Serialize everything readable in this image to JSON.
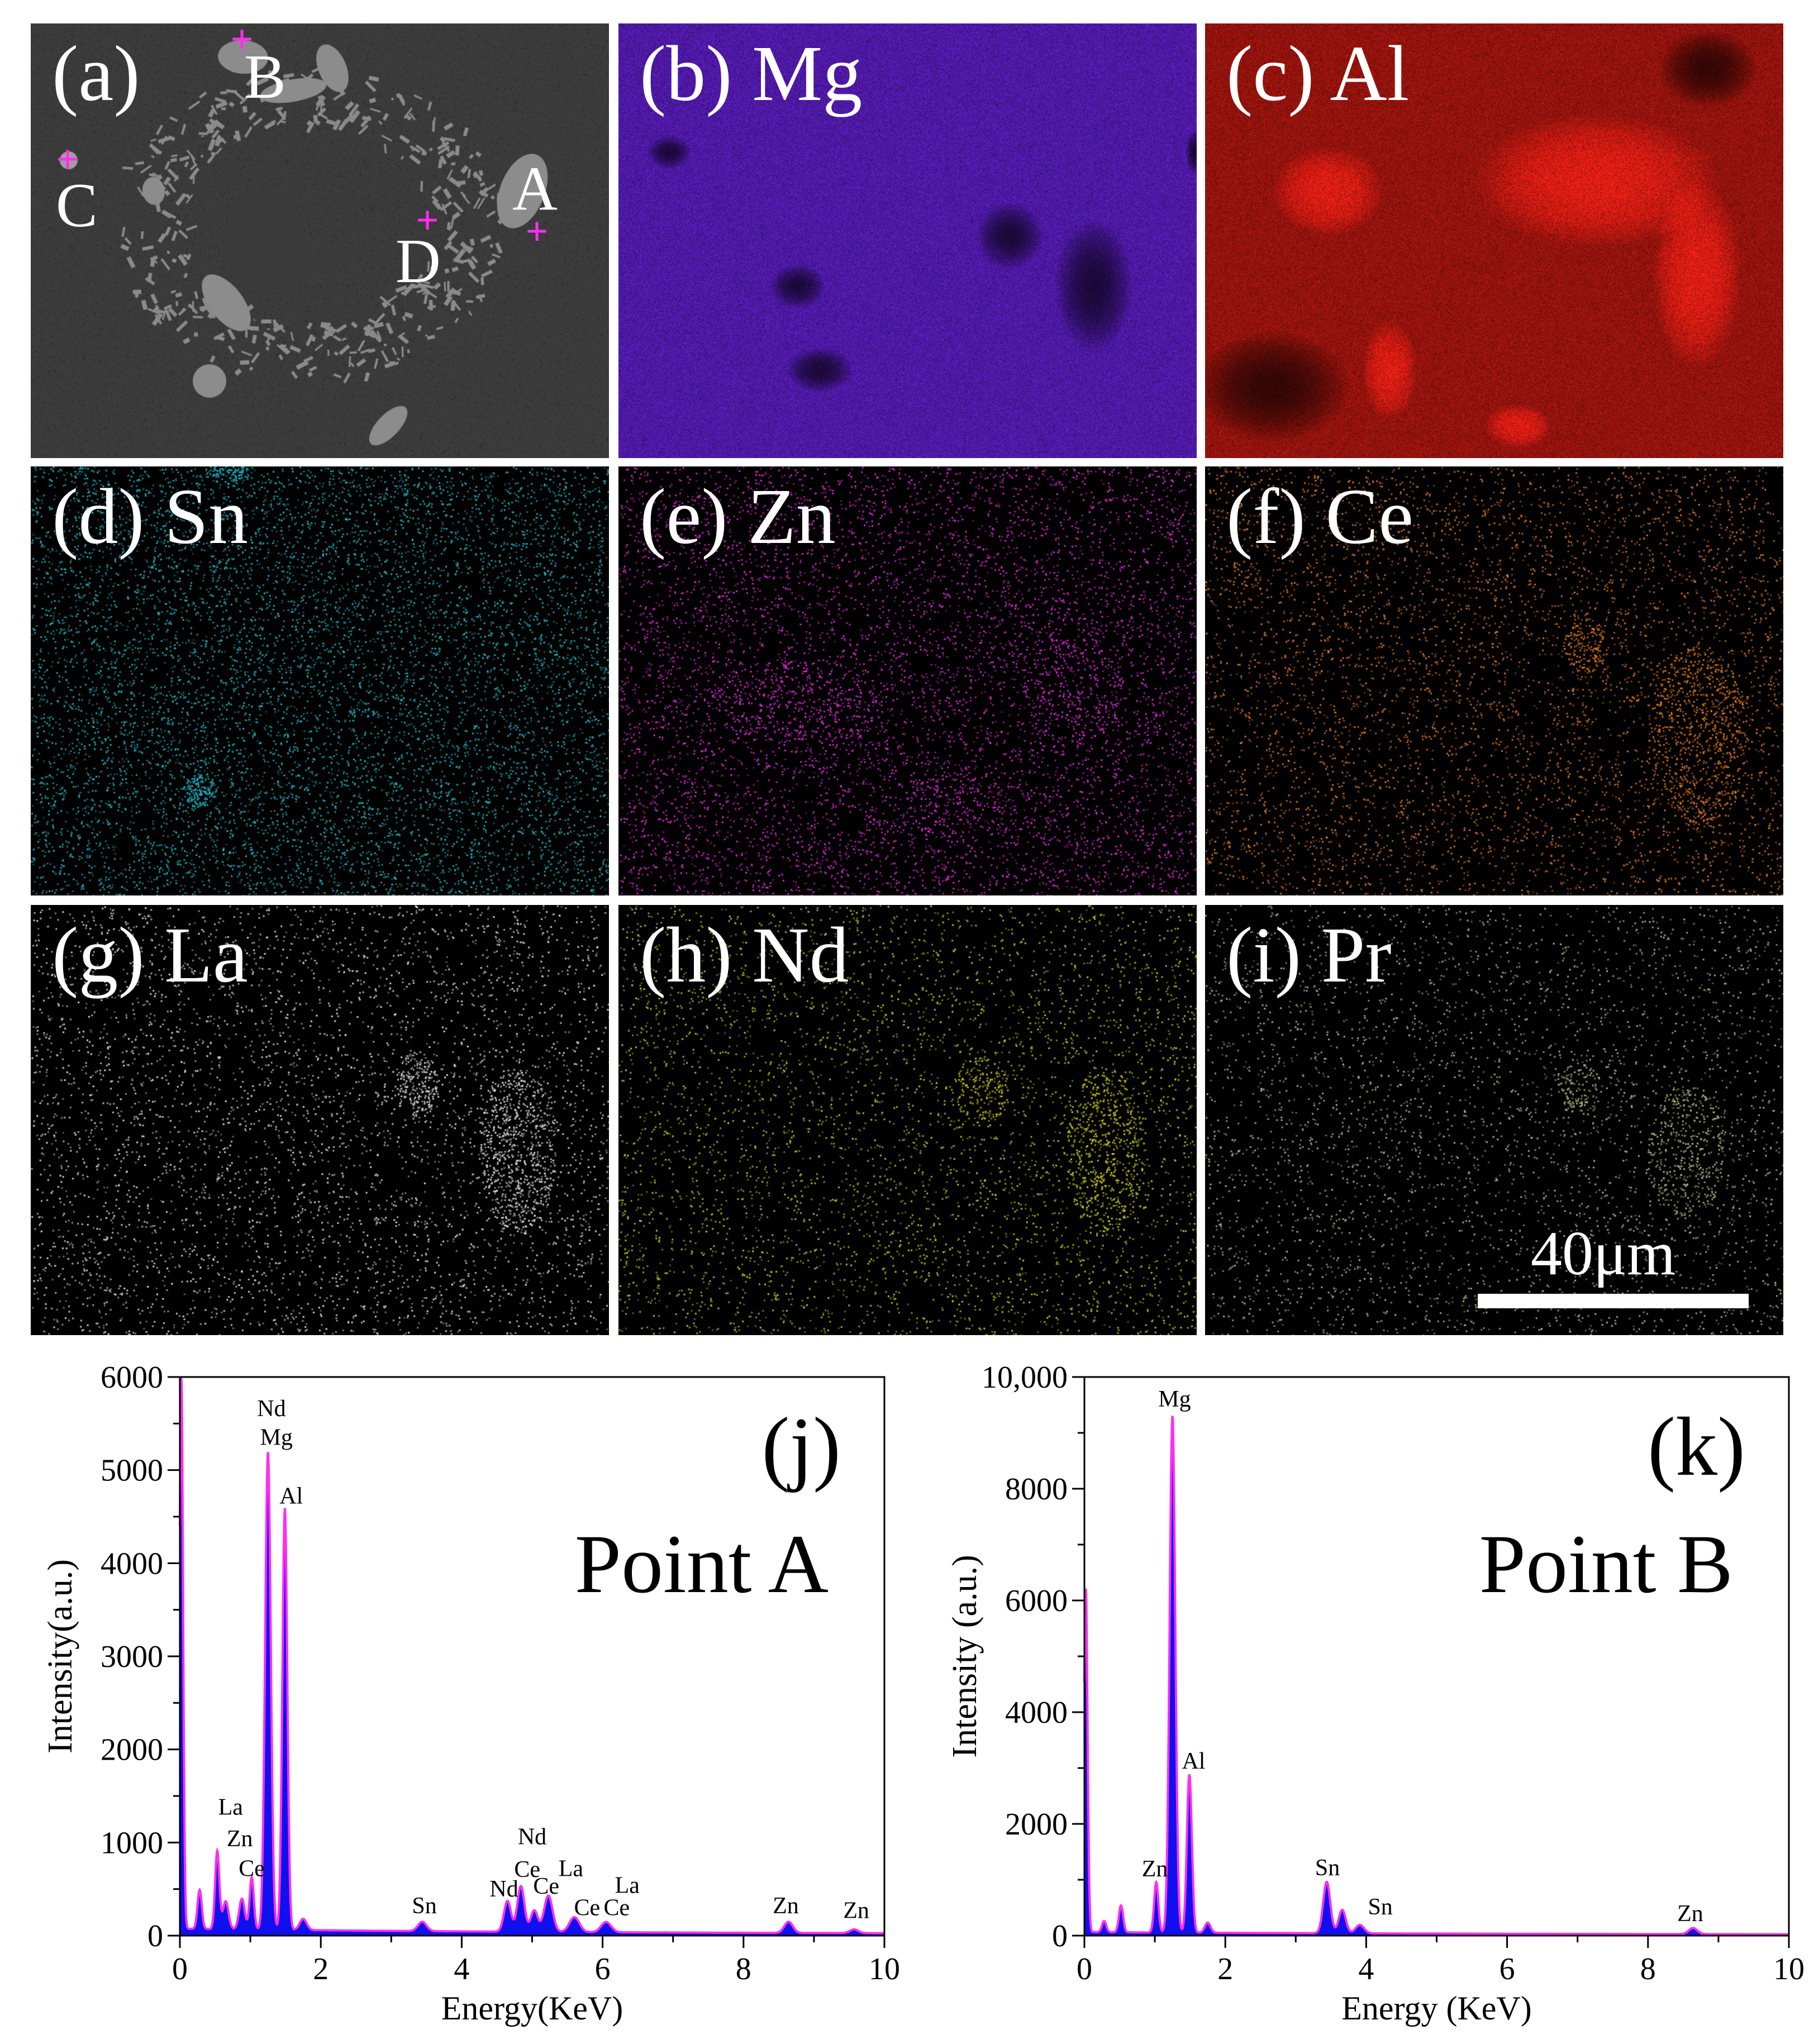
{
  "map_panels": [
    {
      "id": "a",
      "label": "(a)",
      "element": ""
    },
    {
      "id": "b",
      "label": "(b)",
      "element": "Mg",
      "color": "#6a22e0"
    },
    {
      "id": "c",
      "label": "(c)",
      "element": "Al",
      "color": "#c81a12"
    },
    {
      "id": "d",
      "label": "(d)",
      "element": "Sn",
      "color": "#1fb2c2"
    },
    {
      "id": "e",
      "label": "(e)",
      "element": "Zn",
      "color": "#e02ad8"
    },
    {
      "id": "f",
      "label": "(f)",
      "element": "Ce",
      "color": "#e07a1a"
    },
    {
      "id": "g",
      "label": "(g)",
      "element": "La",
      "color": "#dcdcdc"
    },
    {
      "id": "h",
      "label": "(h)",
      "element": "Nd",
      "color": "#c8c81e"
    },
    {
      "id": "i",
      "label": "(i)",
      "element": "Pr",
      "color": "#b8b880"
    }
  ],
  "sem_points": [
    "A",
    "B",
    "C",
    "D"
  ],
  "marker_color": "#ff2ef0",
  "scale_bar": {
    "label": "40μm"
  },
  "chart_data": [
    {
      "type": "area",
      "panel_label": "(j)",
      "title": "Point A",
      "xlabel": "Energy(KeV)",
      "ylabel": "Intensity(a.u.)",
      "xlim": [
        0,
        10
      ],
      "ylim": [
        0,
        6000
      ],
      "xticks": [
        "0",
        "2",
        "4",
        "6",
        "8",
        "10"
      ],
      "yticks": [
        "0",
        "1000",
        "2000",
        "3000",
        "4000",
        "5000",
        "6000"
      ],
      "line_color": "#ff2ef0",
      "fill_color": "#1010ee",
      "baseline": 60,
      "peaks": [
        {
          "x": 0.02,
          "y": 5960,
          "w": 0.025
        },
        {
          "x": 0.28,
          "y": 420,
          "w": 0.03
        },
        {
          "x": 0.53,
          "y": 840,
          "w": 0.03
        },
        {
          "x": 0.65,
          "y": 300,
          "w": 0.04
        },
        {
          "x": 0.88,
          "y": 330,
          "w": 0.04
        },
        {
          "x": 1.02,
          "y": 560,
          "w": 0.03
        },
        {
          "x": 1.25,
          "y": 5130,
          "w": 0.04
        },
        {
          "x": 1.49,
          "y": 4530,
          "w": 0.035
        },
        {
          "x": 1.75,
          "y": 120,
          "w": 0.05
        },
        {
          "x": 3.44,
          "y": 100,
          "w": 0.06
        },
        {
          "x": 4.65,
          "y": 330,
          "w": 0.05
        },
        {
          "x": 4.84,
          "y": 490,
          "w": 0.05
        },
        {
          "x": 5.03,
          "y": 230,
          "w": 0.05
        },
        {
          "x": 5.23,
          "y": 390,
          "w": 0.06
        },
        {
          "x": 5.6,
          "y": 160,
          "w": 0.07
        },
        {
          "x": 6.05,
          "y": 110,
          "w": 0.07
        },
        {
          "x": 8.64,
          "y": 120,
          "w": 0.06
        },
        {
          "x": 9.57,
          "y": 40,
          "w": 0.06
        }
      ],
      "annotations": [
        {
          "text": "Nd",
          "x": 1.3,
          "y": 5580
        },
        {
          "text": "Mg",
          "x": 1.37,
          "y": 5270
        },
        {
          "text": "Al",
          "x": 1.58,
          "y": 4640
        },
        {
          "text": "La",
          "x": 0.72,
          "y": 1300
        },
        {
          "text": "Zn",
          "x": 0.85,
          "y": 960
        },
        {
          "text": "Ce",
          "x": 1.02,
          "y": 640
        },
        {
          "text": "Sn",
          "x": 3.47,
          "y": 240
        },
        {
          "text": "Nd",
          "x": 5.0,
          "y": 980
        },
        {
          "text": "Ce",
          "x": 4.93,
          "y": 630
        },
        {
          "text": "La",
          "x": 5.55,
          "y": 640
        },
        {
          "text": "Nd",
          "x": 4.6,
          "y": 420
        },
        {
          "text": "Ce",
          "x": 5.2,
          "y": 450
        },
        {
          "text": "Ce",
          "x": 5.78,
          "y": 220
        },
        {
          "text": "Ce",
          "x": 6.2,
          "y": 220
        },
        {
          "text": "La",
          "x": 6.35,
          "y": 460
        },
        {
          "text": "Zn",
          "x": 8.6,
          "y": 240
        },
        {
          "text": "Zn",
          "x": 9.6,
          "y": 190
        }
      ]
    },
    {
      "type": "area",
      "panel_label": "(k)",
      "title": "Point B",
      "xlabel": "Energy (KeV)",
      "ylabel": "Intensity (a.u.)",
      "xlim": [
        0,
        10
      ],
      "ylim": [
        0,
        10000
      ],
      "xticks": [
        "0",
        "2",
        "4",
        "6",
        "8",
        "10"
      ],
      "yticks": [
        "0",
        "2000",
        "4000",
        "6000",
        "8000",
        "10,000"
      ],
      "line_color": "#ff2ef0",
      "fill_color": "#1010ee",
      "baseline": 50,
      "peaks": [
        {
          "x": 0.02,
          "y": 6150,
          "w": 0.025
        },
        {
          "x": 0.28,
          "y": 200,
          "w": 0.03
        },
        {
          "x": 0.52,
          "y": 480,
          "w": 0.03
        },
        {
          "x": 1.02,
          "y": 900,
          "w": 0.03
        },
        {
          "x": 1.25,
          "y": 9250,
          "w": 0.04
        },
        {
          "x": 1.49,
          "y": 2830,
          "w": 0.035
        },
        {
          "x": 1.75,
          "y": 180,
          "w": 0.04
        },
        {
          "x": 3.44,
          "y": 920,
          "w": 0.05
        },
        {
          "x": 3.66,
          "y": 420,
          "w": 0.05
        },
        {
          "x": 3.91,
          "y": 150,
          "w": 0.06
        },
        {
          "x": 8.64,
          "y": 110,
          "w": 0.06
        }
      ],
      "annotations": [
        {
          "text": "Mg",
          "x": 1.28,
          "y": 9470
        },
        {
          "text": "Al",
          "x": 1.55,
          "y": 2990
        },
        {
          "text": "Zn",
          "x": 1.0,
          "y": 1060
        },
        {
          "text": "Sn",
          "x": 3.45,
          "y": 1080
        },
        {
          "text": "Sn",
          "x": 4.2,
          "y": 380
        },
        {
          "text": "Zn",
          "x": 8.6,
          "y": 260
        }
      ]
    }
  ]
}
